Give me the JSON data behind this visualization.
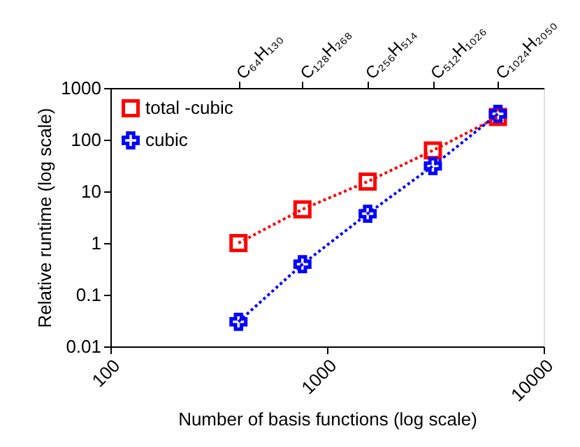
{
  "chart_data": {
    "type": "line",
    "xlabel": "Number of basis functions (log scale)",
    "ylabel": "Relative runtime (log scale)",
    "log": "xy",
    "xlim": [
      100,
      10000
    ],
    "xticks": [
      100,
      1000,
      10000
    ],
    "ylim": [
      0.01,
      1000
    ],
    "yticks": [
      0.01,
      0.1,
      1,
      10,
      100,
      1000
    ],
    "annotations": [
      "C₆₄H₁₃₀",
      "C₁₂₈H₂₆₈",
      "C₂₅₆H₅₁₄",
      "C₅₁₂H₁₀₂₆",
      "C₁₀₂₄H₂₀₅₀"
    ],
    "x": [
      390,
      770,
      1540,
      3080,
      6150
    ],
    "series": [
      {
        "name": "total -cubic",
        "color": "#ff0000",
        "marker": "square",
        "values": [
          1.0,
          4.5,
          15.5,
          62,
          275
        ]
      },
      {
        "name": "cubic",
        "color": "#0000ff",
        "marker": "cross",
        "values": [
          0.03,
          0.39,
          3.7,
          31,
          316
        ]
      }
    ],
    "line_style": "dotted",
    "grid": false,
    "legend": "top left"
  }
}
